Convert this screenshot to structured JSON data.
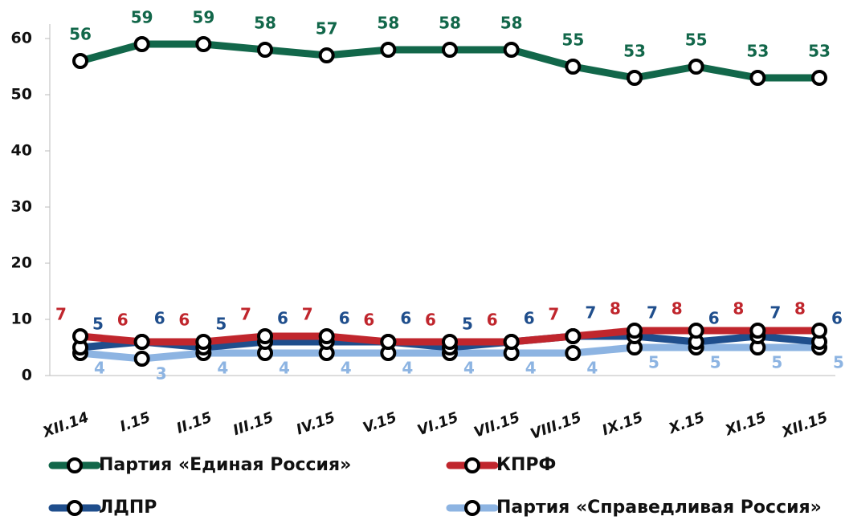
{
  "chart_data": {
    "type": "line",
    "categories": [
      "XII.14",
      "I.15",
      "II.15",
      "III.15",
      "IV.15",
      "V.15",
      "VI.15",
      "VII.15",
      "VIII.15",
      "IX.15",
      "X.15",
      "XI.15",
      "XII.15"
    ],
    "series": [
      {
        "name": "Партия «Единая Россия»",
        "color": "#12674a",
        "values": [
          56,
          59,
          59,
          58,
          57,
          58,
          58,
          58,
          55,
          53,
          55,
          53,
          53
        ]
      },
      {
        "name": "КПРФ",
        "color": "#c0262d",
        "values": [
          7,
          6,
          6,
          7,
          7,
          6,
          6,
          6,
          7,
          8,
          8,
          8,
          8
        ]
      },
      {
        "name": "ЛДПР",
        "color": "#1f4e8c",
        "values": [
          5,
          6,
          5,
          6,
          6,
          6,
          5,
          6,
          7,
          7,
          6,
          7,
          6
        ]
      },
      {
        "name": "Партия «Справедливая Россия»",
        "color": "#8db4e2",
        "values": [
          4,
          3,
          4,
          4,
          4,
          4,
          4,
          4,
          4,
          5,
          5,
          5,
          5
        ]
      }
    ],
    "ylim": [
      0,
      60
    ],
    "yticks": [
      0,
      10,
      20,
      30,
      40,
      50,
      60
    ],
    "grid": false,
    "legend": "bottom"
  }
}
